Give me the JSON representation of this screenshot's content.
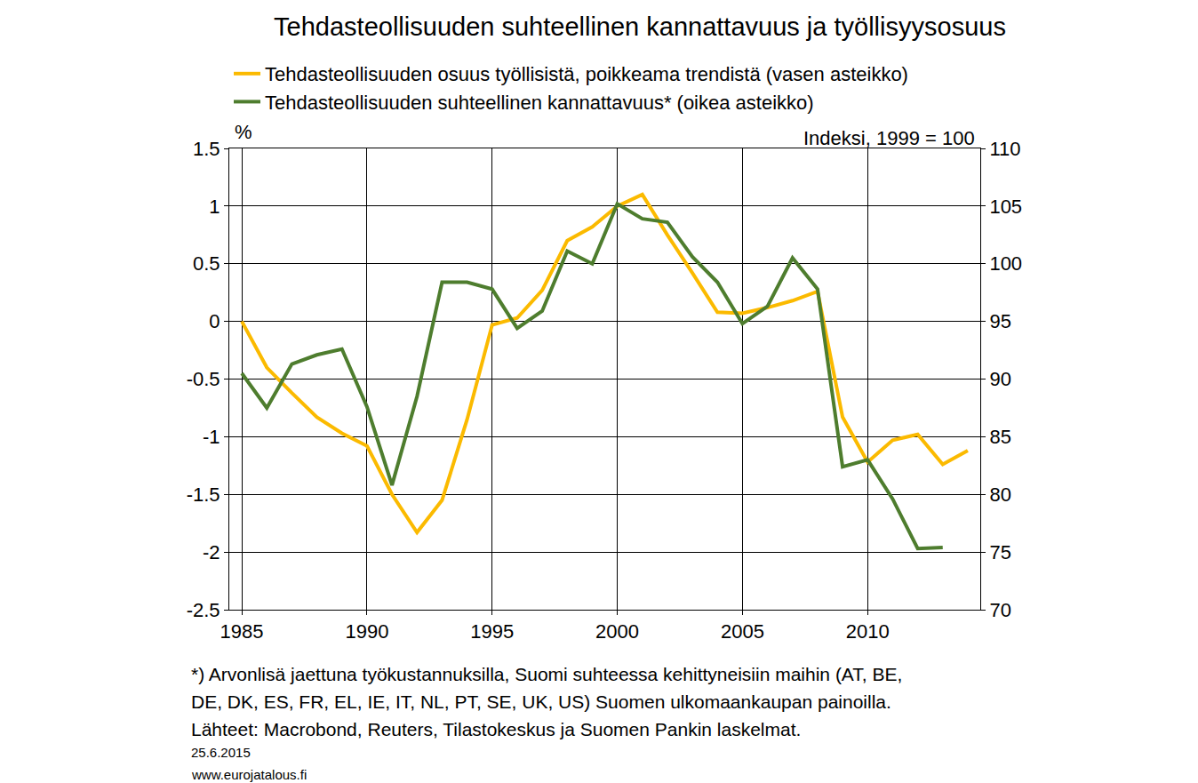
{
  "chart_data": {
    "type": "line",
    "title": "Tehdasteollisuuden suhteellinen kannattavuus ja työllisyysosuus",
    "y_label": "%",
    "y2_label": "Indeksi, 1999 = 100",
    "x": [
      1985,
      1986,
      1987,
      1988,
      1989,
      1990,
      1991,
      1992,
      1993,
      1994,
      1995,
      1996,
      1997,
      1998,
      1999,
      2000,
      2001,
      2002,
      2003,
      2004,
      2005,
      2006,
      2007,
      2008,
      2009,
      2010,
      2011,
      2012,
      2013,
      2014
    ],
    "series": [
      {
        "name": "Tehdasteollisuuden osuus työllisistä, poikkeama trendistä (vasen asteikko)",
        "color": "#FBBA00",
        "values": [
          0.0,
          -0.4,
          -0.62,
          -0.83,
          -0.97,
          -1.08,
          -1.5,
          -1.83,
          -1.55,
          -0.85,
          -0.03,
          0.03,
          0.27,
          0.7,
          0.82,
          1.0,
          1.1,
          0.75,
          0.42,
          0.08,
          0.07,
          0.12,
          0.18,
          0.26,
          -0.83,
          -1.22,
          -1.03,
          -0.98,
          -1.24,
          -1.12
        ]
      },
      {
        "name": "Tehdasteollisuuden suhteellinen kannattavuus* (oikea asteikko)",
        "color": "#4E7D2E",
        "axis": "y2",
        "values": [
          90.5,
          87.5,
          91.3,
          92.1,
          92.6,
          87.6,
          80.8,
          88.5,
          98.4,
          98.4,
          97.8,
          94.4,
          95.9,
          101.1,
          100.0,
          105.2,
          103.9,
          103.6,
          100.6,
          98.4,
          94.8,
          96.3,
          100.5,
          97.8,
          82.4,
          83.0,
          79.6,
          75.3,
          75.4,
          null
        ]
      }
    ],
    "xlim": [
      1984.5,
      2014.5
    ],
    "xticks": [
      1985,
      1990,
      1995,
      2000,
      2005,
      2010
    ],
    "ylim": [
      -2.5,
      1.5
    ],
    "yticks": [
      -2.5,
      -2,
      -1.5,
      -1,
      -0.5,
      0,
      0.5,
      1,
      1.5
    ],
    "y2lim": [
      70,
      110
    ],
    "y2ticks": [
      70,
      75,
      80,
      85,
      90,
      95,
      100,
      105,
      110
    ],
    "grid": true,
    "legend": "top",
    "notes": [
      "*) Arvonlisä jaettuna työkustannuksilla, Suomi suhteessa kehittyneisiin maihin (AT, BE,",
      "DE, DK, ES, FR, EL, IE, IT, NL, PT, SE, UK, US) Suomen ulkomaankaupan painoilla.",
      "Lähteet: Macrobond, Reuters, Tilastokeskus ja Suomen Pankin laskelmat."
    ],
    "date": "25.6.2015",
    "source_url": "www.eurojatalous.fi"
  }
}
